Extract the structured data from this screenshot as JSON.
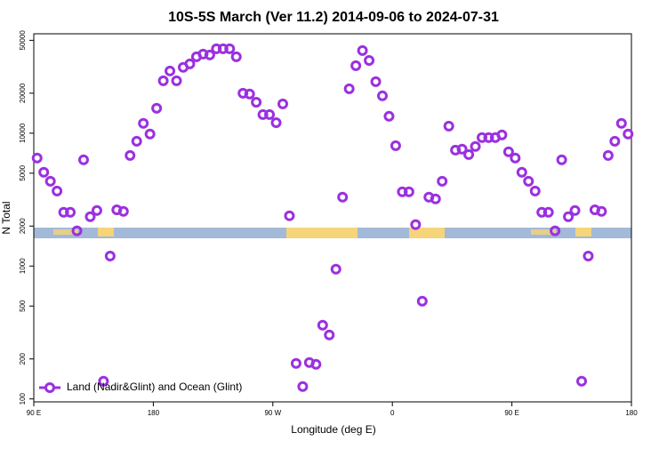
{
  "chart_data": {
    "type": "scatter",
    "title": "10S-5S March (Ver 11.2)   2014-09-06 to 2024-07-31",
    "x_label": "Longitude (deg E)",
    "y_label": "N Total",
    "log_y": true,
    "legend": "bottom-left",
    "xlim": [
      90,
      540
    ],
    "xticks": [
      {
        "value": 90,
        "label": "90 E"
      },
      {
        "value": 180,
        "label": "180"
      },
      {
        "value": 270,
        "label": "90 W"
      },
      {
        "value": 360,
        "label": "0"
      },
      {
        "value": 450,
        "label": "90 E"
      },
      {
        "value": 540,
        "label": "180"
      }
    ],
    "ylim": [
      95,
      56000
    ],
    "yticks": [
      100,
      200,
      500,
      1000,
      2000,
      5000,
      10000,
      20000,
      50000
    ],
    "series": [
      {
        "name": "Land (Nadir&Glint) and Ocean (Glint)",
        "color": "#9b30e0",
        "x": [
          92.5,
          97.5,
          102.5,
          107.5,
          112.5,
          117.5,
          122.5,
          127.5,
          132.5,
          137.5,
          142.5,
          147.5,
          152.5,
          157.5,
          162.5,
          167.5,
          172.5,
          177.5,
          182.5,
          187.5,
          192.5,
          197.5,
          202.5,
          207.5,
          212.5,
          217.5,
          222.5,
          227.5,
          232.5,
          237.5,
          242.5,
          247.5,
          252.5,
          257.5,
          262.5,
          267.5,
          272.5,
          277.5,
          282.5,
          287.5,
          292.5,
          297.5,
          302.5,
          307.5,
          312.5,
          317.5,
          322.5,
          327.5,
          332.5,
          337.5,
          342.5,
          347.5,
          352.5,
          357.5,
          362.5,
          367.5,
          372.5,
          377.5,
          382.5,
          387.5,
          392.5,
          397.5,
          402.5,
          407.5,
          412.5,
          417.5,
          422.5,
          427.5,
          432.5,
          437.5,
          442.5,
          447.5,
          452.5,
          457.5,
          462.5,
          467.5,
          472.5,
          477.5,
          482.5,
          487.5,
          492.5,
          497.5,
          502.5,
          507.5,
          512.5,
          517.5,
          522.5,
          527.5,
          532.5,
          537.5
        ],
        "values": [
          6500,
          5080,
          4350,
          3670,
          2540,
          2540,
          1840,
          6300,
          2350,
          2620,
          136,
          1190,
          2650,
          2580,
          6800,
          8700,
          11850,
          9850,
          15400,
          24800,
          29400,
          24800,
          31300,
          33200,
          37600,
          39400,
          38800,
          43200,
          43200,
          43200,
          37600,
          20000,
          19700,
          17100,
          13800,
          13800,
          12000,
          16600,
          2390,
          185,
          124,
          188,
          182,
          359,
          303,
          948,
          3300,
          21600,
          32200,
          41900,
          35300,
          24400,
          19100,
          13400,
          8050,
          3620,
          3620,
          2050,
          544,
          3300,
          3200,
          4350,
          11300,
          7460,
          7580,
          6900,
          7940,
          9270,
          9270,
          9270,
          9700,
          7240,
          6500,
          5080,
          4350,
          3670,
          2540,
          2540,
          1840,
          6300,
          2350,
          2620,
          136,
          1190,
          2650,
          2580,
          6800,
          8700,
          11850,
          9850
        ]
      }
    ]
  }
}
